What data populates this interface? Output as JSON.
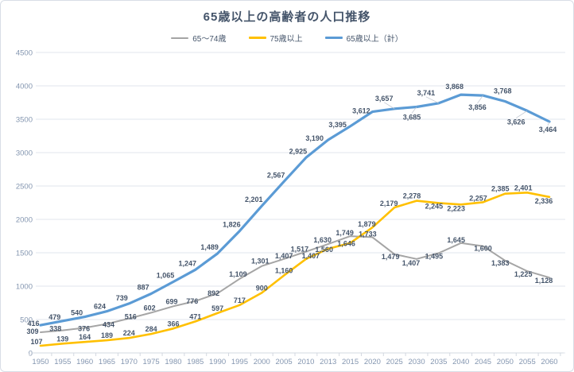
{
  "chart_data": {
    "type": "line",
    "title": "65歳以上の高齢者の人口推移",
    "categories": [
      "1950",
      "1955",
      "1960",
      "1965",
      "1970",
      "1975",
      "1980",
      "1985",
      "1990",
      "1995",
      "2000",
      "2005",
      "2010",
      "2013",
      "2015",
      "2020",
      "2025",
      "2030",
      "2035",
      "2040",
      "2045",
      "2050",
      "2055",
      "2060"
    ],
    "series": [
      {
        "name": "65〜74歳",
        "color": "#A5A5A5",
        "values": [
          309,
          338,
          376,
          434,
          516,
          602,
          699,
          776,
          892,
          1109,
          1301,
          1407,
          1517,
          1630,
          1749,
          1733,
          1479,
          1407,
          1495,
          1645,
          1600,
          1383,
          1225,
          1128
        ]
      },
      {
        "name": "75歳以上",
        "color": "#FFC000",
        "values": [
          107,
          139,
          164,
          189,
          224,
          284,
          366,
          471,
          597,
          717,
          900,
          1160,
          1407,
          1560,
          1646,
          1879,
          2179,
          2278,
          2245,
          2223,
          2257,
          2385,
          2401,
          2336
        ]
      },
      {
        "name": "65歳以上（計）",
        "color": "#5B9BD5",
        "values": [
          416,
          479,
          540,
          624,
          739,
          887,
          1065,
          1247,
          1489,
          1826,
          2201,
          2567,
          2925,
          3190,
          3395,
          3612,
          3657,
          3685,
          3741,
          3868,
          3856,
          3768,
          3626,
          3464
        ]
      }
    ],
    "xlabel": "",
    "ylabel": "",
    "ylim": [
      0,
      4500
    ],
    "y_step": 500,
    "y_ticks": [
      "0",
      "500",
      "1000",
      "1500",
      "2000",
      "2500",
      "3000",
      "3500",
      "4000",
      "4500"
    ],
    "grid": true,
    "legend_position": "top",
    "data_labels": true,
    "label_format": "thousands-comma",
    "axis_label_color": "#8496B0",
    "data_label_color": "#44546A",
    "gridline_color": "#E2E6EC"
  }
}
